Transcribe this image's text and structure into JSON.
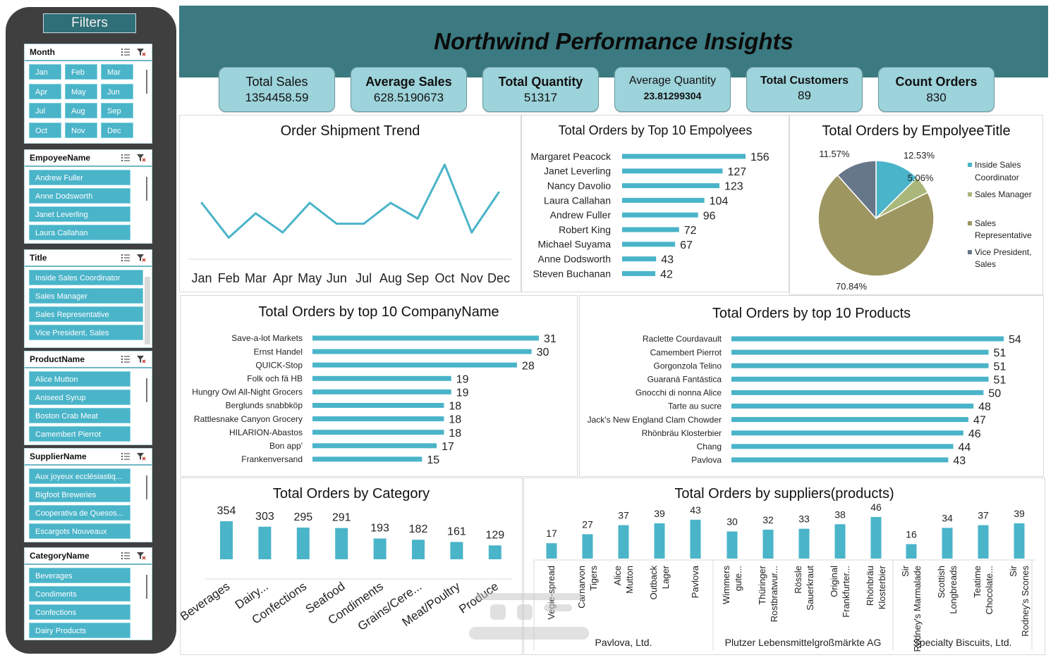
{
  "filters": {
    "title": "Filters",
    "slicers": [
      {
        "title": "Month",
        "items": [
          "Jan",
          "Feb",
          "Mar",
          "Apr",
          "May",
          "Jun",
          "Jul",
          "Aug",
          "Sep",
          "Oct",
          "Nov",
          "Dec"
        ]
      },
      {
        "title": "EmpoyeeName",
        "items": [
          "Andrew Fuller",
          "Anne Dodsworth",
          "Janet Leverling",
          "Laura Callahan"
        ]
      },
      {
        "title": "Title",
        "items": [
          "Inside Sales Coordinator",
          "Sales Manager",
          "Sales Representative",
          "Vice President, Sales"
        ]
      },
      {
        "title": "ProductName",
        "items": [
          "Alice Mutton",
          "Aniseed Syrup",
          "Boston Crab Meat",
          "Camembert Pierrot"
        ]
      },
      {
        "title": "SupplierName",
        "items": [
          "Aux joyeux ecclésiastiq...",
          "Bigfoot Breweries",
          "Cooperativa de Quesos...",
          "Escargots Nouveaux"
        ]
      },
      {
        "title": "CategoryName",
        "items": [
          "Beverages",
          "Condiments",
          "Confections",
          "Dairy Products"
        ]
      }
    ]
  },
  "header": {
    "title": "Northwind Performance Insights"
  },
  "kpis": [
    {
      "label": "Total Sales",
      "value": "1354458.59"
    },
    {
      "label": "Average Sales",
      "value": "628.5190673"
    },
    {
      "label": "Total Quantity",
      "value": "51317"
    },
    {
      "label": "Average Quantity",
      "value": "23.81299304"
    },
    {
      "label": "Total Customers",
      "value": "89"
    },
    {
      "label": "Count Orders",
      "value": "830"
    }
  ],
  "colors": {
    "accent": "#4ab4c9",
    "header": "#3b7a80",
    "kpi": "#9dd3da",
    "panel": "#3f3f3f"
  },
  "chart_data": [
    {
      "id": "shipment",
      "type": "line",
      "title": "Order Shipment Trend",
      "categories": [
        "Jan",
        "Feb",
        "Mar",
        "Apr",
        "May",
        "Jun",
        "Jul",
        "Aug",
        "Sep",
        "Oct",
        "Nov",
        "Dec"
      ],
      "values": [
        72,
        52,
        66,
        55,
        72,
        60,
        60,
        72,
        63,
        94,
        55,
        78
      ],
      "grid": false
    },
    {
      "id": "employees",
      "type": "bar",
      "orientation": "horizontal",
      "title": "Total Orders by Top 10 Empolyees",
      "categories": [
        "Margaret Peacock",
        "Janet Leverling",
        "Nancy Davolio",
        "Laura Callahan",
        "Andrew Fuller",
        "Robert King",
        "Michael Suyama",
        "Anne Dodsworth",
        "Steven Buchanan"
      ],
      "values": [
        156,
        127,
        123,
        104,
        96,
        72,
        67,
        43,
        42
      ]
    },
    {
      "id": "titles",
      "type": "pie",
      "title": "Total Orders by EmpolyeeTitle",
      "categories": [
        "Inside Sales Coordinator",
        "Sales Manager",
        "Sales Representative",
        "Vice President, Sales"
      ],
      "values": [
        12.53,
        5.06,
        70.84,
        11.57
      ],
      "labels": [
        "12.53%",
        "5.06%",
        "70.84%",
        "11.57%"
      ],
      "colors": [
        "#4ab4c9",
        "#a9b77a",
        "#9e9660",
        "#67778a"
      ],
      "legend": "right"
    },
    {
      "id": "companies",
      "type": "bar",
      "orientation": "horizontal",
      "title": "Total Orders by top 10 CompanyName",
      "categories": [
        "Save-a-lot Markets",
        "Ernst Handel",
        "QUICK-Stop",
        "Folk och fä HB",
        "Hungry Owl All-Night Grocers",
        "Berglunds snabbköp",
        "Rattlesnake Canyon Grocery",
        "HILARION-Abastos",
        "Bon app'",
        "Frankenversand"
      ],
      "values": [
        31,
        30,
        28,
        19,
        19,
        18,
        18,
        18,
        17,
        15
      ]
    },
    {
      "id": "products",
      "type": "bar",
      "orientation": "horizontal",
      "title": "Total Orders by top 10 Products",
      "categories": [
        "Raclette Courdavault",
        "Camembert Pierrot",
        "Gorgonzola Telino",
        "Guaraná Fantástica",
        "Gnocchi di nonna Alice",
        "Tarte au sucre",
        "Jack's New England Clam Chowder",
        "Rhönbräu Klosterbier",
        "Chang",
        "Pavlova"
      ],
      "values": [
        54,
        51,
        51,
        51,
        50,
        48,
        47,
        46,
        44,
        43
      ]
    },
    {
      "id": "category",
      "type": "bar",
      "title": "Total Orders by Category",
      "categories": [
        "Beverages",
        "Dairy...",
        "Confections",
        "Seafood",
        "Condiments",
        "Grains/Cere...",
        "Meat/Poultry",
        "Produce"
      ],
      "values": [
        354,
        303,
        295,
        291,
        193,
        182,
        161,
        129
      ]
    },
    {
      "id": "suppliers",
      "type": "bar",
      "title": "Total Orders by suppliers(products)",
      "groups": [
        {
          "name": "Pavlova, Ltd.",
          "categories": [
            "Vegie-spread",
            "Carnarvon Tigers",
            "Alice Mutton",
            "Outback Lager",
            "Pavlova"
          ],
          "values": [
            17,
            27,
            37,
            39,
            43
          ]
        },
        {
          "name": "Plutzer Lebensmittelgroßmärkte AG",
          "categories": [
            "Wimmers gute...",
            "Thüringer Rostbratwur...",
            "Rössle Sauerkraut",
            "Original Frankfurter...",
            "Rhönbräu Klosterbier"
          ],
          "values": [
            30,
            32,
            33,
            38,
            46
          ]
        },
        {
          "name": "Specialty Biscuits, Ltd.",
          "categories": [
            "Sir Rodney's Marmalade",
            "Scottish Longbreads",
            "Teatime Chocolate...",
            "Sir Rodney's Scones"
          ],
          "values": [
            16,
            34,
            37,
            39
          ]
        }
      ]
    }
  ]
}
